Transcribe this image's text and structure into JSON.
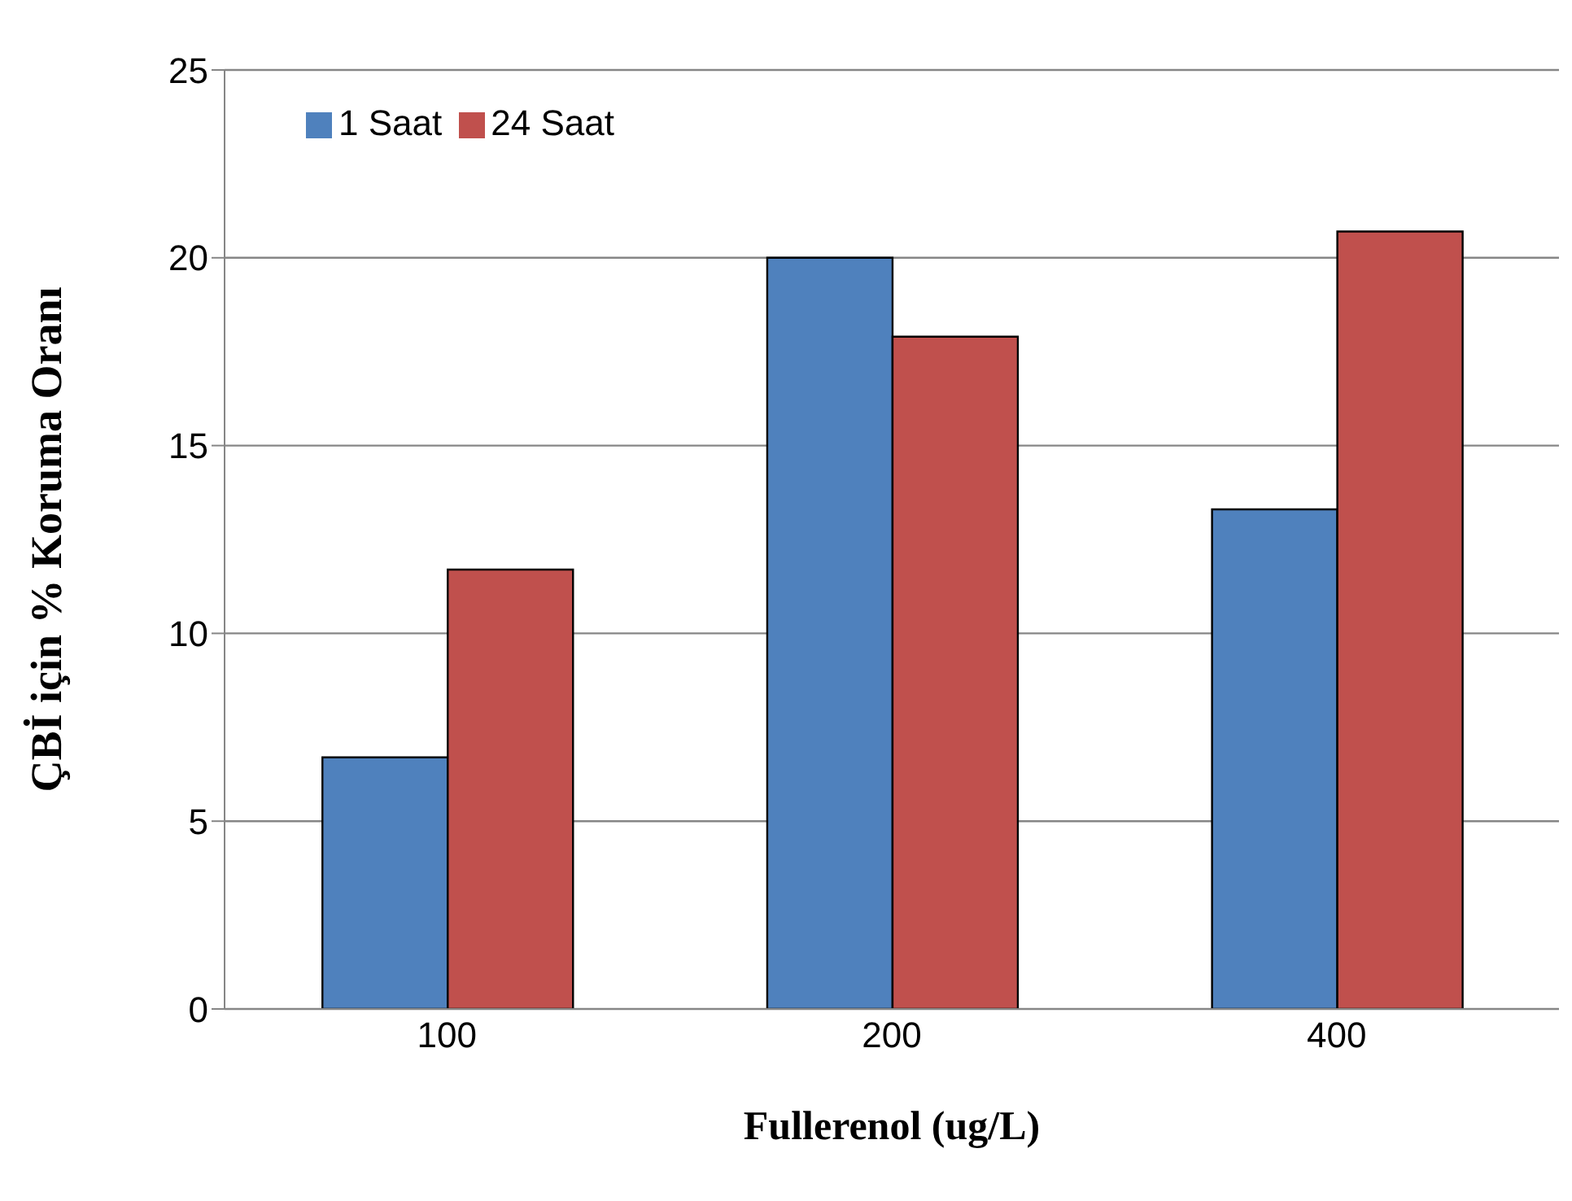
{
  "chart_data": {
    "type": "bar",
    "xlabel": "Fullerenol (ug/L)",
    "ylabel": "ÇBİ için % Koruma Oranı",
    "categories": [
      "100",
      "200",
      "400"
    ],
    "series": [
      {
        "name": "1 Saat",
        "color": "#4f81bd",
        "values": [
          6.7,
          20,
          13.3
        ]
      },
      {
        "name": "24 Saat",
        "color": "#c0504d",
        "values": [
          11.7,
          17.9,
          20.7
        ]
      }
    ],
    "ylim": [
      0,
      25
    ],
    "yticks": [
      0,
      5,
      10,
      15,
      20,
      25
    ],
    "grid": "y",
    "legend": "top left"
  }
}
